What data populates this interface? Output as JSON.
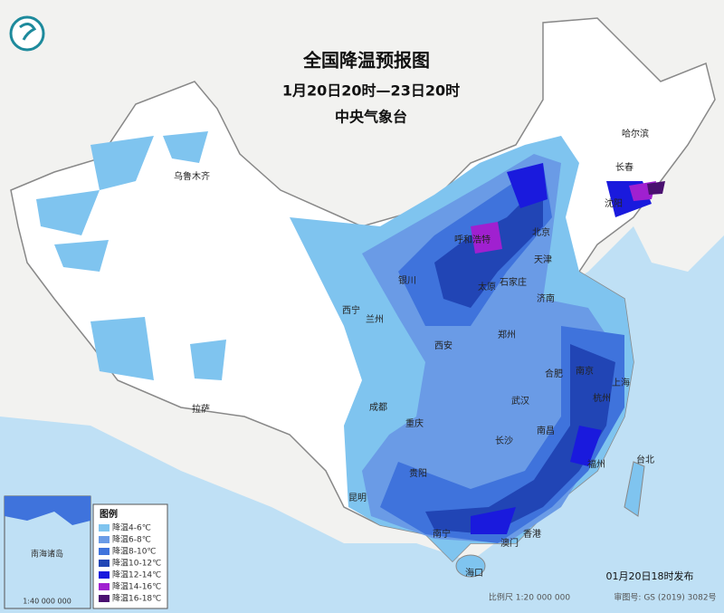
{
  "header": {
    "title": "全国降温预报图",
    "period": "1月20日20时—23日20时",
    "issuer": "中央气象台"
  },
  "cities": [
    "乌鲁木齐",
    "哈尔滨",
    "长春",
    "沈阳",
    "呼和浩特",
    "北京",
    "天津",
    "石家庄",
    "太原",
    "银川",
    "济南",
    "西宁",
    "兰州",
    "郑州",
    "西安",
    "合肥",
    "南京",
    "上海",
    "杭州",
    "武汉",
    "成都",
    "拉萨",
    "重庆",
    "南昌",
    "长沙",
    "福州",
    "台北",
    "贵阳",
    "昆明",
    "南宁",
    "澳门",
    "香港",
    "海口"
  ],
  "legend": {
    "title": "图例",
    "items": [
      {
        "label": "降温4-6℃",
        "color": "#7fc4ef"
      },
      {
        "label": "降温6-8℃",
        "color": "#6a9be6"
      },
      {
        "label": "降温8-10℃",
        "color": "#3f73dc"
      },
      {
        "label": "降温10-12℃",
        "color": "#2145b5"
      },
      {
        "label": "降温12-14℃",
        "color": "#1a1add"
      },
      {
        "label": "降温14-16℃",
        "color": "#a020d0"
      },
      {
        "label": "降温16-18℃",
        "color": "#4a1070"
      }
    ]
  },
  "inset": {
    "title": "南海诸岛",
    "scale": "1:40 000 000"
  },
  "footer": {
    "release": "01月20日18时发布",
    "scale": "比例尺 1:20 000 000",
    "approval": "审图号: GS (2019) 3082号"
  }
}
